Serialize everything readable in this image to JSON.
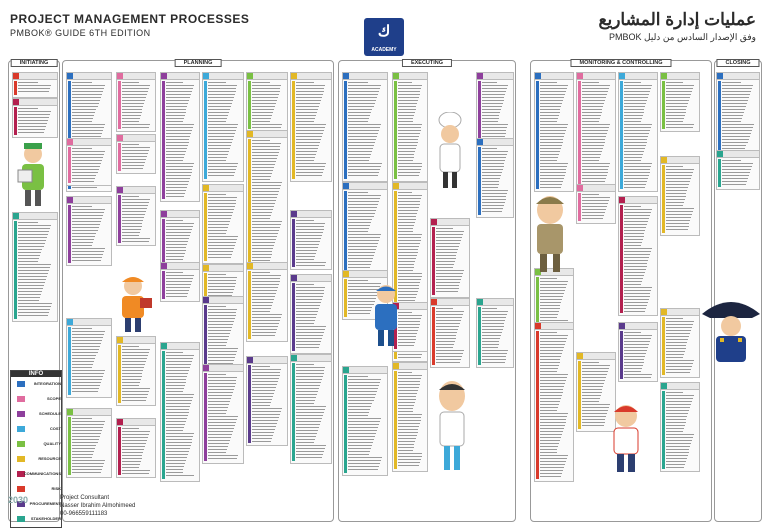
{
  "header": {
    "title": "PROJECT MANAGEMENT PROCESSES",
    "subtitle": "PMBOK® GUIDE 6TH EDITION",
    "title_ar": "عمليات إدارة المشاريع",
    "subtitle_ar": "وفق الإصدار السادس من دليل PMBOK",
    "logo_text": "ACADEMY"
  },
  "phases": [
    {
      "label": "INITIATING"
    },
    {
      "label": "PLANNING"
    },
    {
      "label": "EXECUTING"
    },
    {
      "label": "MONITORING & CONTROLLING"
    },
    {
      "label": "CLOSING"
    }
  ],
  "info": {
    "title": "INFO",
    "items": [
      {
        "name": "INTEGRATION",
        "color": "#2c6fbf"
      },
      {
        "name": "SCOPE",
        "color": "#e06c9f"
      },
      {
        "name": "SCHEDULE",
        "color": "#8e3f9c"
      },
      {
        "name": "COST",
        "color": "#3da9d9"
      },
      {
        "name": "QUALITY",
        "color": "#7ac043"
      },
      {
        "name": "RESOURCE",
        "color": "#e2b826"
      },
      {
        "name": "COMMUNICATIONS",
        "color": "#b3204f"
      },
      {
        "name": "RISK",
        "color": "#d93a2b"
      },
      {
        "name": "PROCUREMENT",
        "color": "#5a3a8c"
      },
      {
        "name": "STAKEHOLDER",
        "color": "#2aa58f"
      }
    ]
  },
  "footer": {
    "role": "Project Consultant",
    "name": "Nasser Ibrahim Almohimeed",
    "phone": "00-966559111183",
    "vision": "2030"
  }
}
